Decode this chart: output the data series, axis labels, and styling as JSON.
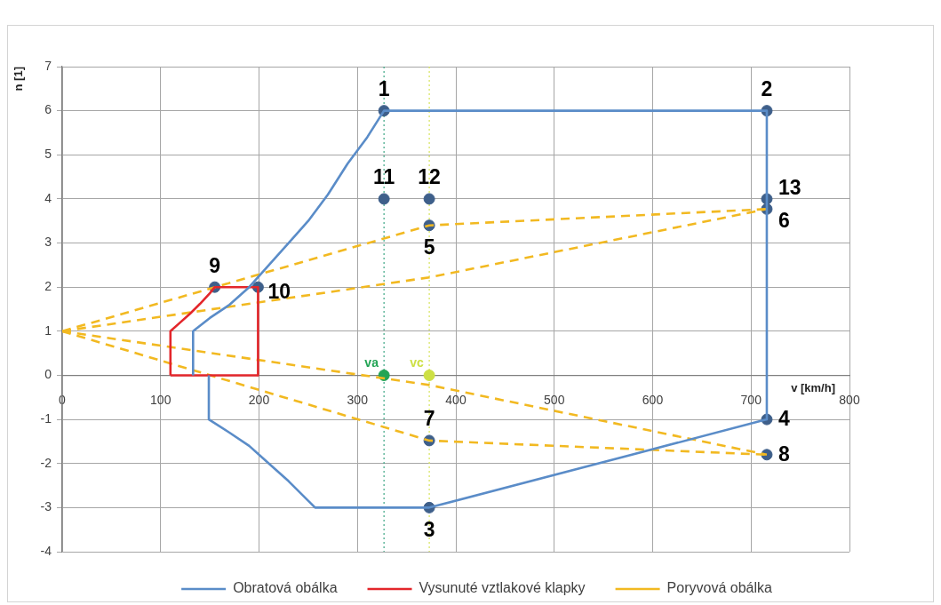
{
  "chart_data": {
    "type": "line",
    "xlabel": "v [km/h]",
    "ylabel": "n [1]",
    "xlim": [
      0,
      800
    ],
    "xticks": [
      0,
      100,
      200,
      300,
      400,
      500,
      600,
      700,
      800
    ],
    "ylim": [
      -4,
      7
    ],
    "yticks": [
      -4,
      -3,
      -2,
      -1,
      0,
      1,
      2,
      3,
      4,
      5,
      6,
      7
    ],
    "grid": true,
    "legend": "bottom",
    "series": [
      {
        "name": "Obratová obálka",
        "color": "#5a8cc8",
        "x": [
          133,
          133,
          150,
          170,
          190,
          210,
          230,
          250,
          270,
          290,
          310,
          327,
          716,
          716,
          373,
          257,
          230,
          210,
          190,
          170,
          149,
          149
        ],
        "values": [
          0,
          1,
          1.3,
          1.6,
          2.0,
          2.5,
          3.0,
          3.5,
          4.1,
          4.8,
          5.4,
          6,
          6,
          -1,
          -3,
          -3,
          -2.4,
          -2.0,
          -1.6,
          -1.3,
          -1,
          0
        ]
      },
      {
        "name": "Vysunuté vztlakové klapky",
        "color": "#e3262b",
        "x": [
          110,
          110,
          120,
          130,
          140,
          150,
          155,
          199,
          199
        ],
        "values": [
          0,
          1,
          1.2,
          1.4,
          1.62,
          1.86,
          2,
          2,
          0
        ]
      },
      {
        "color": "#e3262b",
        "x": [
          110,
          199
        ],
        "values": [
          0,
          0
        ]
      },
      {
        "name": "Poryvová obálka",
        "color": "#f2b921",
        "line_style": "dashed",
        "x": [
          0,
          373,
          716
        ],
        "values": [
          1,
          3.4,
          3.77
        ]
      },
      {
        "color": "#f2b921",
        "line_style": "dashed",
        "x": [
          0,
          373,
          716
        ],
        "values": [
          1,
          2.22,
          3.77
        ]
      },
      {
        "color": "#f2b921",
        "line_style": "dashed",
        "x": [
          0,
          373,
          716
        ],
        "values": [
          1,
          -0.22,
          -1.8
        ]
      },
      {
        "color": "#f2b921",
        "line_style": "dashed",
        "x": [
          0,
          373,
          716
        ],
        "values": [
          1,
          -1.48,
          -1.8
        ]
      },
      {
        "type": "scatter",
        "color": "#3e5f8a",
        "x": [
          327,
          716,
          373,
          716,
          373,
          716,
          373,
          716,
          155,
          199,
          327,
          373,
          716
        ],
        "values": [
          6,
          6,
          -3,
          -1,
          3.4,
          3.77,
          -1.48,
          -1.8,
          2,
          2,
          4,
          4,
          4
        ]
      },
      {
        "name": "va",
        "type": "scatter",
        "color": "#22a455",
        "x": [
          327
        ],
        "values": [
          0
        ]
      },
      {
        "name": "vc",
        "type": "scatter",
        "color": "#cde044",
        "x": [
          373
        ],
        "values": [
          0
        ]
      }
    ],
    "ref_lines": [
      {
        "axis": "x",
        "value": 327,
        "color": "#3aa583",
        "line_style": "dotted"
      },
      {
        "axis": "x",
        "value": 373,
        "color": "#d6e45a",
        "line_style": "dotted"
      }
    ],
    "annotations": [
      {
        "text": "1",
        "x": 327,
        "y": 6
      },
      {
        "text": "2",
        "x": 716,
        "y": 6
      },
      {
        "text": "3",
        "x": 373,
        "y": -3
      },
      {
        "text": "4",
        "x": 716,
        "y": -1
      },
      {
        "text": "5",
        "x": 373,
        "y": 3.4
      },
      {
        "text": "6",
        "x": 716,
        "y": 3.77
      },
      {
        "text": "7",
        "x": 373,
        "y": -1.48
      },
      {
        "text": "8",
        "x": 716,
        "y": -1.8
      },
      {
        "text": "9",
        "x": 155,
        "y": 2
      },
      {
        "text": "10",
        "x": 199,
        "y": 2
      },
      {
        "text": "11",
        "x": 327,
        "y": 4
      },
      {
        "text": "12",
        "x": 373,
        "y": 4
      },
      {
        "text": "13",
        "x": 716,
        "y": 4
      }
    ]
  }
}
